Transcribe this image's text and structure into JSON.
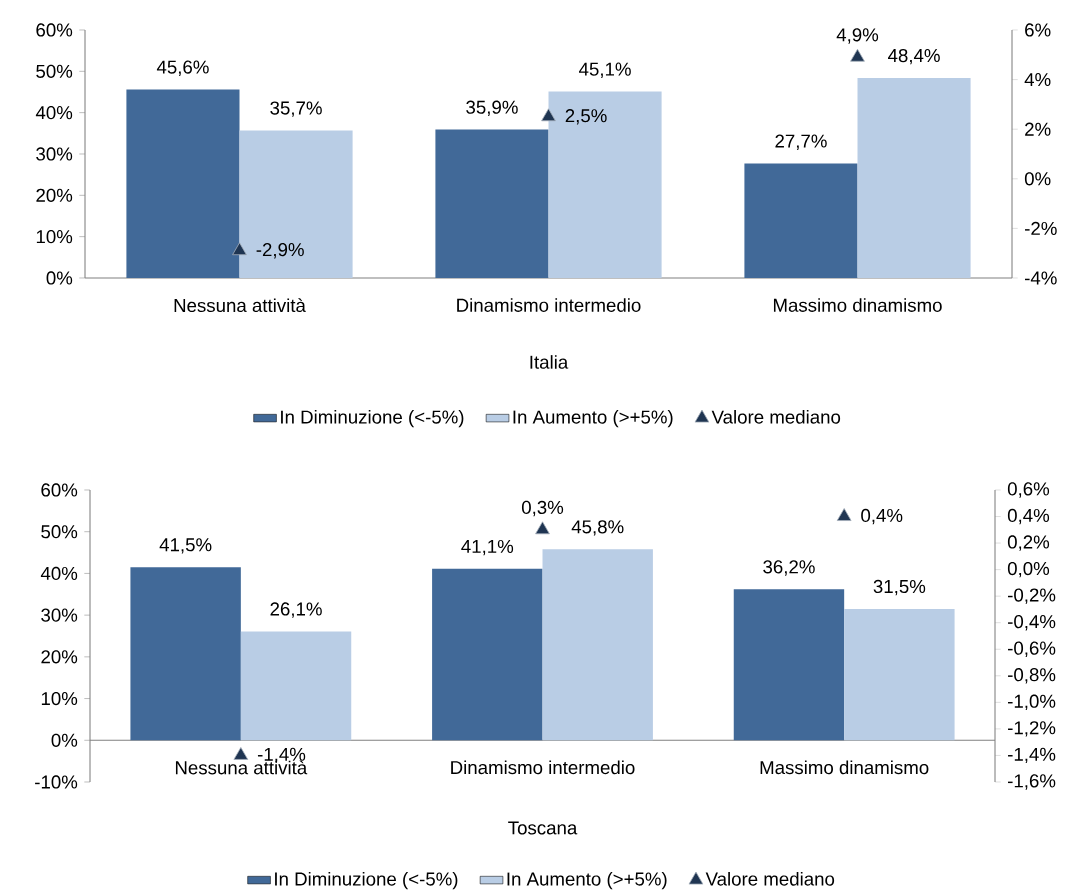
{
  "chart_data": [
    {
      "type": "bar",
      "xlabel": "Italia",
      "categories": [
        "Nessuna attività",
        "Dinamismo intermedio",
        "Massimo dinamismo"
      ],
      "series": [
        {
          "name": "In Diminuzione (<-5%)",
          "color": "#416998",
          "values": [
            45.6,
            35.9,
            27.7
          ],
          "value_labels": [
            "45,6%",
            "35,9%",
            "27,7%"
          ]
        },
        {
          "name": "In Aumento (>+5%)",
          "color": "#b9cde5",
          "values": [
            35.7,
            45.1,
            48.4
          ],
          "value_labels": [
            "35,7%",
            "45,1%",
            "48,4%"
          ]
        },
        {
          "name": "Valore mediano",
          "type": "scatter",
          "axis": "y2",
          "marker": "triangle",
          "color": "#1f3552",
          "values": [
            -2.9,
            2.5,
            4.9
          ],
          "value_labels": [
            "-2,9%",
            "2,5%",
            "4,9%"
          ]
        }
      ],
      "ylim": [
        0,
        60
      ],
      "yticks": [
        {
          "value": 0,
          "label": "0%"
        },
        {
          "value": 10,
          "label": "10%"
        },
        {
          "value": 20,
          "label": "20%"
        },
        {
          "value": 30,
          "label": "30%"
        },
        {
          "value": 40,
          "label": "40%"
        },
        {
          "value": 50,
          "label": "50%"
        },
        {
          "value": 60,
          "label": "60%"
        }
      ],
      "y2lim": [
        -4,
        6
      ],
      "y2ticks": [
        {
          "value": -4,
          "label": "-4%"
        },
        {
          "value": -2,
          "label": "-2%"
        },
        {
          "value": 0,
          "label": "0%"
        },
        {
          "value": 2,
          "label": "2%"
        },
        {
          "value": 4,
          "label": "4%"
        },
        {
          "value": 6,
          "label": "6%"
        }
      ],
      "legend": "bottom"
    },
    {
      "type": "bar",
      "xlabel": "Toscana",
      "categories": [
        "Nessuna attività",
        "Dinamismo intermedio",
        "Massimo dinamismo"
      ],
      "series": [
        {
          "name": "In Diminuzione (<-5%)",
          "color": "#416998",
          "values": [
            41.5,
            41.1,
            36.2
          ],
          "value_labels": [
            "41,5%",
            "41,1%",
            "36,2%"
          ]
        },
        {
          "name": "In Aumento (>+5%)",
          "color": "#b9cde5",
          "values": [
            26.1,
            45.8,
            31.5
          ],
          "value_labels": [
            "26,1%",
            "45,8%",
            "31,5%"
          ]
        },
        {
          "name": "Valore mediano",
          "type": "scatter",
          "axis": "y2",
          "marker": "triangle",
          "color": "#1f3552",
          "values": [
            -1.4,
            0.3,
            0.4
          ],
          "value_labels": [
            "-1,4%",
            "0,3%",
            "0,4%"
          ]
        }
      ],
      "ylim": [
        -10,
        60
      ],
      "yticks": [
        {
          "value": -10,
          "label": "-10%"
        },
        {
          "value": 0,
          "label": "0%"
        },
        {
          "value": 10,
          "label": "10%"
        },
        {
          "value": 20,
          "label": "20%"
        },
        {
          "value": 30,
          "label": "30%"
        },
        {
          "value": 40,
          "label": "40%"
        },
        {
          "value": 50,
          "label": "50%"
        },
        {
          "value": 60,
          "label": "60%"
        }
      ],
      "y2lim": [
        -1.6,
        0.6
      ],
      "y2ticks": [
        {
          "value": -1.6,
          "label": "-1,6%"
        },
        {
          "value": -1.4,
          "label": "-1,4%"
        },
        {
          "value": -1.2,
          "label": "-1,2%"
        },
        {
          "value": -1.0,
          "label": "-1,0%"
        },
        {
          "value": -0.8,
          "label": "-0,8%"
        },
        {
          "value": -0.6,
          "label": "-0,6%"
        },
        {
          "value": -0.4,
          "label": "-0,4%"
        },
        {
          "value": -0.2,
          "label": "-0,2%"
        },
        {
          "value": 0.0,
          "label": "0,0%"
        },
        {
          "value": 0.2,
          "label": "0,2%"
        },
        {
          "value": 0.4,
          "label": "0,4%"
        },
        {
          "value": 0.6,
          "label": "0,6%"
        }
      ],
      "legend": "bottom"
    }
  ]
}
